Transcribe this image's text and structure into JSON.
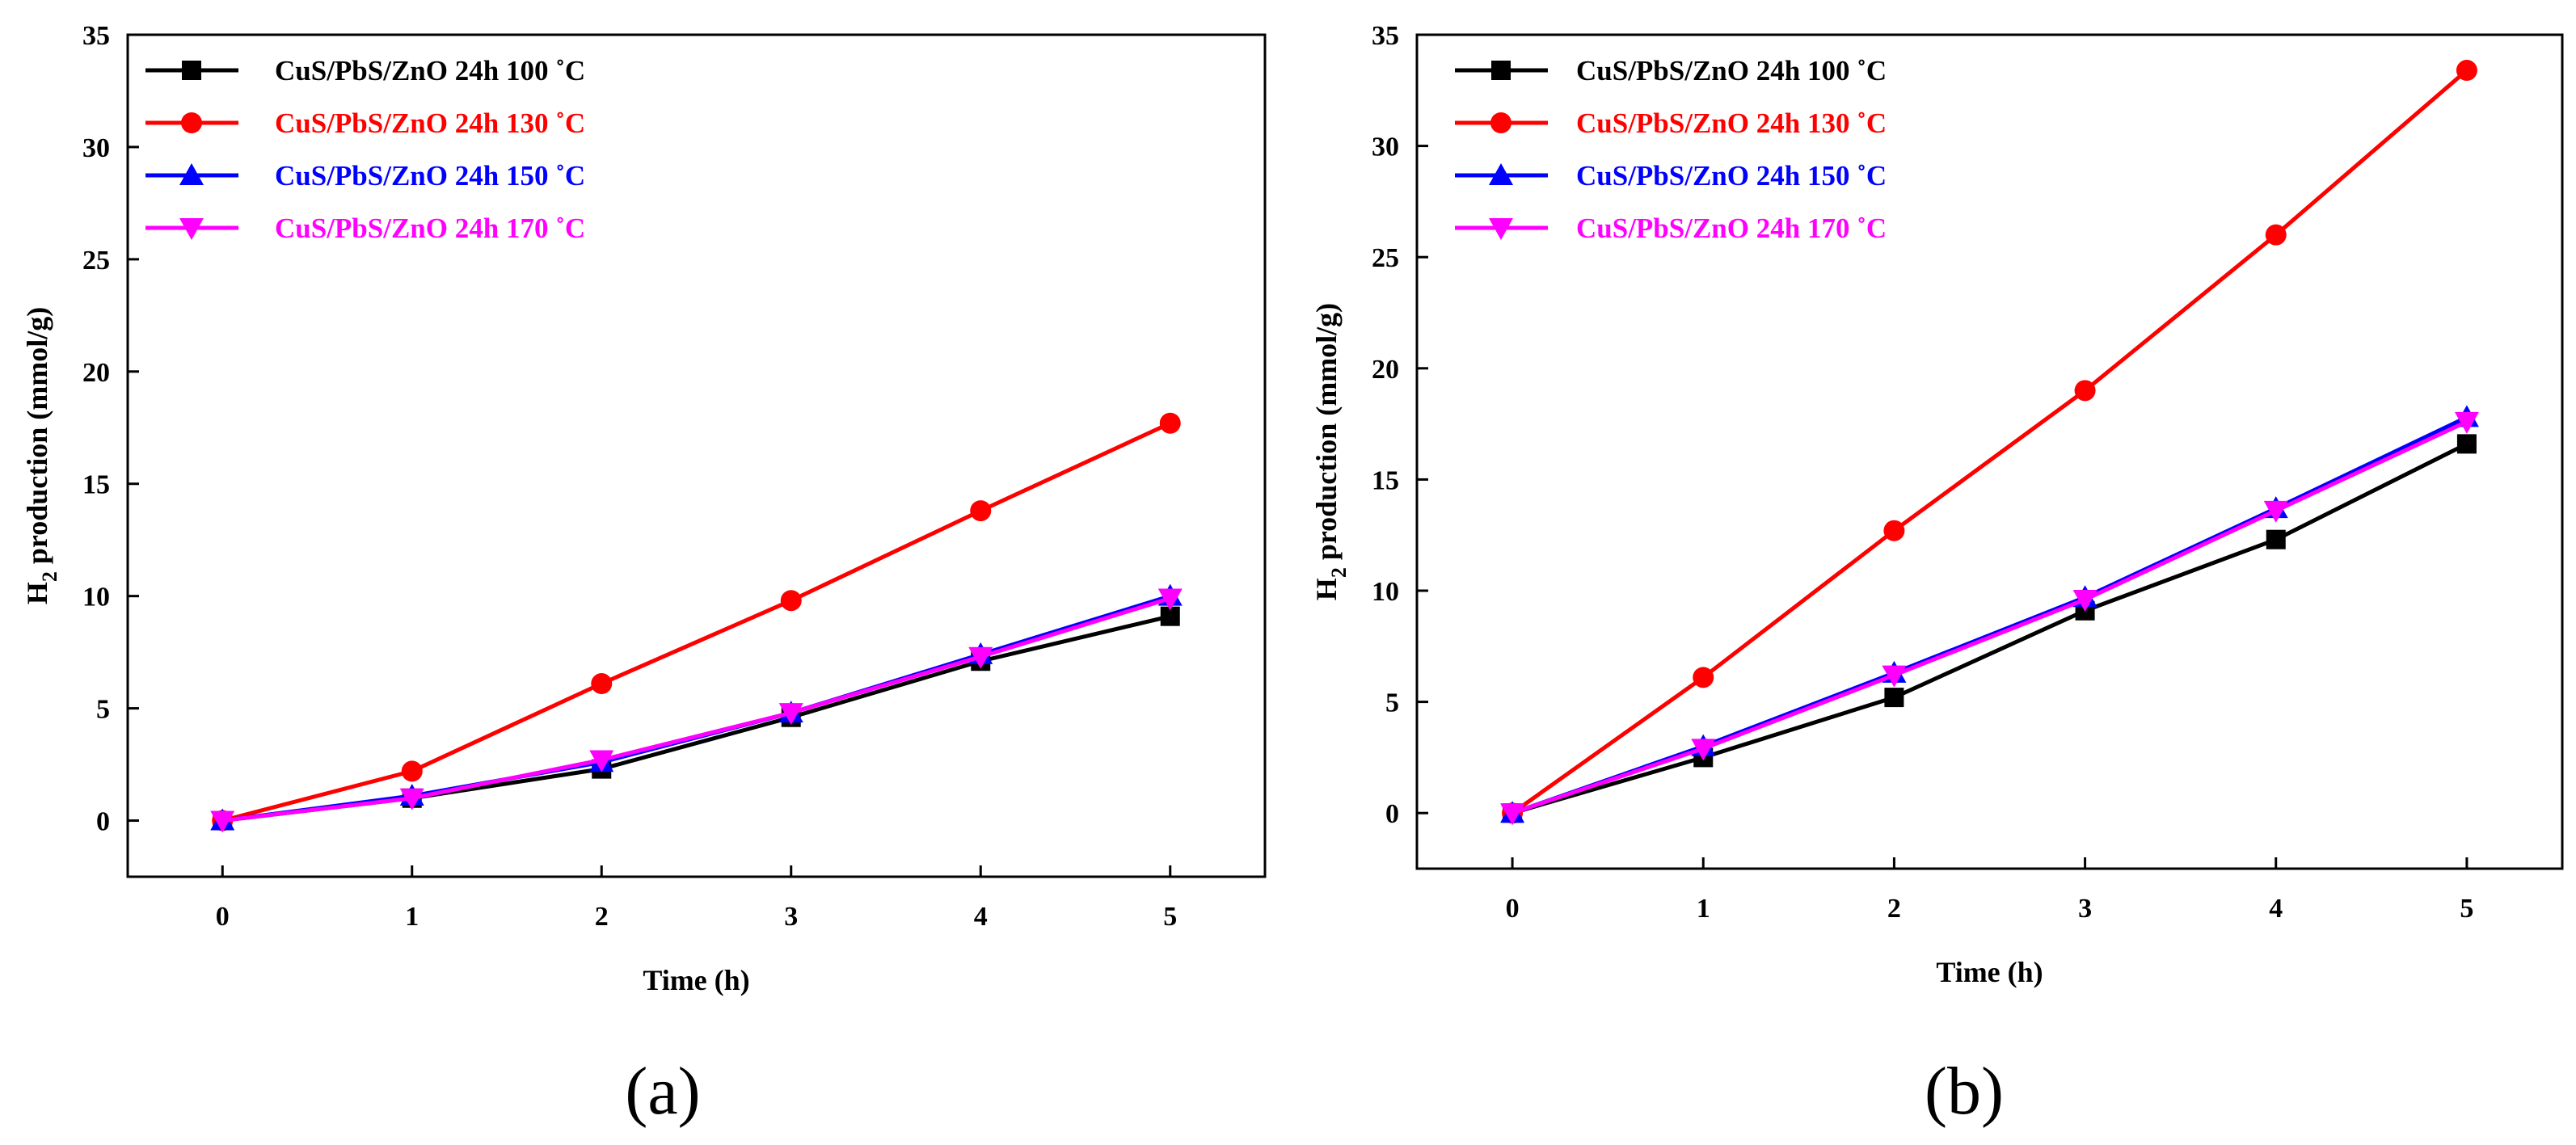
{
  "chart_data": [
    {
      "type": "line",
      "panel_label": "(a)",
      "xlabel": "Time (h)",
      "ylabel_main": "H",
      "ylabel_sub": "2",
      "ylabel_rest": " production (mmol/g)",
      "x": [
        0,
        1,
        2,
        3,
        4,
        5
      ],
      "xticks": [
        "0",
        "1",
        "2",
        "3",
        "4",
        "5"
      ],
      "yticks": [
        "0",
        "5",
        "10",
        "15",
        "20",
        "25",
        "30",
        "35"
      ],
      "xlim": [
        -0.5,
        5.5
      ],
      "ylim": [
        -2.5,
        35
      ],
      "legend_position": "top-left",
      "series": [
        {
          "name": "CuS/PbS/ZnO 24h 100 ˚C",
          "color": "#000000",
          "marker": "square",
          "values": [
            0,
            1.0,
            2.3,
            4.6,
            7.1,
            9.1
          ]
        },
        {
          "name": "CuS/PbS/ZnO 24h 130 ˚C",
          "color": "#ff0000",
          "marker": "circle",
          "values": [
            0,
            2.2,
            6.1,
            9.8,
            13.8,
            17.7
          ]
        },
        {
          "name": "CuS/PbS/ZnO 24h 150 ˚C",
          "color": "#0000ff",
          "marker": "triangle-up",
          "values": [
            0,
            1.1,
            2.6,
            4.8,
            7.4,
            10.0
          ]
        },
        {
          "name": "CuS/PbS/ZnO 24h 170 ˚C",
          "color": "#ff00ff",
          "marker": "triangle-down",
          "values": [
            0,
            1.0,
            2.7,
            4.8,
            7.3,
            9.9
          ]
        }
      ]
    },
    {
      "type": "line",
      "panel_label": "(b)",
      "xlabel": "Time (h)",
      "ylabel_main": "H",
      "ylabel_sub": "2",
      "ylabel_rest": " production (mmol/g)",
      "x": [
        0,
        1,
        2,
        3,
        4,
        5
      ],
      "xticks": [
        "0",
        "1",
        "2",
        "3",
        "4",
        "5"
      ],
      "yticks": [
        "0",
        "5",
        "10",
        "15",
        "20",
        "25",
        "30",
        "35"
      ],
      "xlim": [
        -0.5,
        5.5
      ],
      "ylim": [
        -2.5,
        35
      ],
      "legend_position": "top-left",
      "series": [
        {
          "name": "CuS/PbS/ZnO 24h 100 ˚C",
          "color": "#000000",
          "marker": "square",
          "values": [
            0,
            2.5,
            5.2,
            9.1,
            12.3,
            16.6
          ]
        },
        {
          "name": "CuS/PbS/ZnO 24h 130 ˚C",
          "color": "#ff0000",
          "marker": "circle",
          "values": [
            0,
            6.1,
            12.7,
            19.0,
            26.0,
            33.4
          ]
        },
        {
          "name": "CuS/PbS/ZnO 24h 150 ˚C",
          "color": "#0000ff",
          "marker": "triangle-up",
          "values": [
            0,
            3.0,
            6.3,
            9.7,
            13.7,
            17.8
          ]
        },
        {
          "name": "CuS/PbS/ZnO 24h 170 ˚C",
          "color": "#ff00ff",
          "marker": "triangle-down",
          "values": [
            0,
            2.9,
            6.2,
            9.6,
            13.6,
            17.6
          ]
        }
      ]
    }
  ]
}
